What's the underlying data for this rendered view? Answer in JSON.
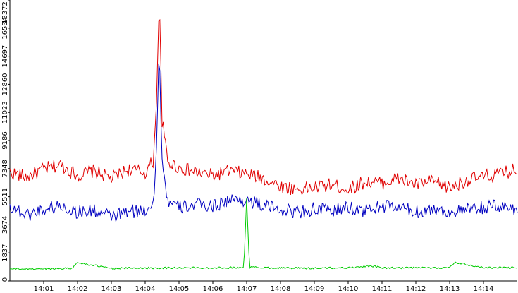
{
  "chart_data": {
    "type": "line",
    "title": "",
    "xlabel": "",
    "ylabel": "",
    "ylim": [
      0,
      18372
    ],
    "xlim": [
      "14:00:00",
      "14:15:00"
    ],
    "grid": false,
    "legend": "none",
    "y_ticks": [
      "0",
      "1837",
      "3674",
      "5511",
      "7348",
      "9186",
      "11023",
      "12860",
      "14697",
      "16534",
      "18372"
    ],
    "x_ticks": [
      "14:01",
      "14:02",
      "14:03",
      "14:04",
      "14:05",
      "14:06",
      "14:07",
      "14:08",
      "14:09",
      "14:10",
      "14:11",
      "14:12",
      "14:13",
      "14:14"
    ],
    "series": [
      {
        "color": "#e00000",
        "x": [
          "14:00:00",
          "14:00:30",
          "14:01:00",
          "14:01:30",
          "14:02:00",
          "14:02:30",
          "14:03:00",
          "14:03:30",
          "14:04:00",
          "14:04:15",
          "14:04:20",
          "14:04:25",
          "14:04:30",
          "14:04:40",
          "14:05:00",
          "14:05:30",
          "14:06:00",
          "14:06:30",
          "14:07:00",
          "14:07:30",
          "14:08:00",
          "14:08:30",
          "14:09:00",
          "14:09:30",
          "14:10:00",
          "14:10:30",
          "14:11:00",
          "14:11:30",
          "14:12:00",
          "14:12:30",
          "14:13:00",
          "14:13:30",
          "14:14:00",
          "14:14:30",
          "14:14:59"
        ],
        "values": [
          7100,
          6800,
          7300,
          7600,
          6900,
          7200,
          6700,
          7300,
          7100,
          7900,
          12000,
          18372,
          10500,
          7800,
          7400,
          7100,
          6900,
          7200,
          7000,
          6700,
          6200,
          6000,
          6100,
          6300,
          6000,
          6500,
          6400,
          6700,
          6300,
          6500,
          6100,
          6600,
          6800,
          7000,
          7300
        ]
      },
      {
        "color": "#0000c0",
        "x": [
          "14:00:00",
          "14:00:30",
          "14:01:00",
          "14:01:30",
          "14:02:00",
          "14:02:30",
          "14:03:00",
          "14:03:30",
          "14:04:00",
          "14:04:15",
          "14:04:20",
          "14:04:25",
          "14:04:30",
          "14:04:40",
          "14:05:00",
          "14:05:30",
          "14:06:00",
          "14:06:30",
          "14:07:00",
          "14:07:30",
          "14:08:00",
          "14:08:30",
          "14:09:00",
          "14:09:30",
          "14:10:00",
          "14:10:30",
          "14:11:00",
          "14:11:30",
          "14:12:00",
          "14:12:30",
          "14:13:00",
          "14:13:30",
          "14:14:00",
          "14:14:30",
          "14:14:59"
        ],
        "values": [
          4900,
          4300,
          4700,
          4900,
          4500,
          4600,
          4200,
          4500,
          4600,
          5300,
          8700,
          15200,
          7900,
          5200,
          4800,
          5000,
          4900,
          5300,
          5300,
          4900,
          4700,
          4500,
          4700,
          4600,
          4800,
          4600,
          4900,
          4800,
          4500,
          4700,
          4500,
          4600,
          4800,
          4900,
          4700
        ]
      },
      {
        "color": "#00cc00",
        "x": [
          "14:00:00",
          "14:01:00",
          "14:01:50",
          "14:02:00",
          "14:03:00",
          "14:04:00",
          "14:05:00",
          "14:06:00",
          "14:06:55",
          "14:07:00",
          "14:07:05",
          "14:08:00",
          "14:09:00",
          "14:10:00",
          "14:10:40",
          "14:11:00",
          "14:12:00",
          "14:13:00",
          "14:13:10",
          "14:14:00",
          "14:14:59"
        ],
        "values": [
          780,
          800,
          830,
          1200,
          830,
          850,
          860,
          860,
          880,
          5400,
          900,
          850,
          840,
          860,
          1000,
          850,
          860,
          870,
          1200,
          870,
          870
        ]
      }
    ]
  }
}
